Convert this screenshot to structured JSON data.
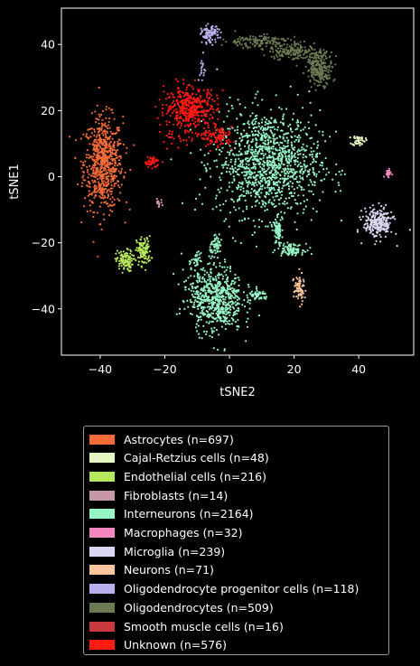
{
  "chart_data": {
    "type": "scatter",
    "xlabel": "tSNE2",
    "ylabel": "tSNE1",
    "xlim": [
      -52,
      57
    ],
    "ylim": [
      -54,
      51
    ],
    "xticks": [
      -40,
      -20,
      0,
      20,
      40
    ],
    "yticks": [
      -40,
      -20,
      0,
      20,
      40
    ],
    "grid": false,
    "legend_placement": "below plot",
    "background": "#000000",
    "series": [
      {
        "name": "Astrocytes (n=697)",
        "color": "#f26b38",
        "n": 697,
        "clusters": [
          {
            "cx": -39,
            "cy": 4,
            "sx": 3,
            "sy": 7,
            "n": 697
          }
        ]
      },
      {
        "name": "Cajal-Retzius cells (n=48)",
        "color": "#e5f6c2",
        "n": 48,
        "clusters": [
          {
            "cx": 40,
            "cy": 11,
            "sx": 1,
            "sy": 0.8,
            "n": 48
          }
        ]
      },
      {
        "name": "Endothelial cells (n=216)",
        "color": "#b5e85a",
        "n": 216,
        "clusters": [
          {
            "cx": -32.5,
            "cy": -25.5,
            "sx": 1.3,
            "sy": 1.6,
            "n": 110
          },
          {
            "cx": -26.5,
            "cy": -22.5,
            "sx": 1.1,
            "sy": 2.2,
            "n": 106
          }
        ]
      },
      {
        "name": "Fibroblasts (n=14)",
        "color": "#c797a8",
        "n": 14,
        "clusters": [
          {
            "cx": -22,
            "cy": -8,
            "sx": 0.6,
            "sy": 0.6,
            "n": 14
          }
        ]
      },
      {
        "name": "Interneurons (n=2164)",
        "color": "#96f5c5",
        "n": 2164,
        "clusters": [
          {
            "cx": 12,
            "cy": 4,
            "sx": 8,
            "sy": 8,
            "n": 1200
          },
          {
            "cx": -4,
            "cy": -37,
            "sx": 4,
            "sy": 5,
            "n": 600
          },
          {
            "cx": -4,
            "cy": -21,
            "sx": 1,
            "sy": 1.3,
            "n": 60
          },
          {
            "cx": 9,
            "cy": -36,
            "sx": 1.5,
            "sy": 0.8,
            "n": 50
          },
          {
            "cx": 15,
            "cy": -17,
            "sx": 0.6,
            "sy": 2,
            "n": 80
          },
          {
            "cx": 19,
            "cy": -22,
            "sx": 2,
            "sy": 0.8,
            "n": 100
          },
          {
            "cx": -10,
            "cy": -25,
            "sx": 0.6,
            "sy": 1,
            "n": 24
          },
          {
            "cx": -10,
            "cy": -33,
            "sx": 3,
            "sy": 5,
            "n": 50
          }
        ]
      },
      {
        "name": "Macrophages (n=32)",
        "color": "#f487c0",
        "n": 32,
        "clusters": [
          {
            "cx": 49,
            "cy": 1,
            "sx": 0.5,
            "sy": 0.5,
            "n": 32
          }
        ]
      },
      {
        "name": "Microglia (n=239)",
        "color": "#dcd7f0",
        "n": 239,
        "clusters": [
          {
            "cx": 46,
            "cy": -14,
            "sx": 2.3,
            "sy": 2.3,
            "n": 239
          }
        ]
      },
      {
        "name": "Neurons (n=71)",
        "color": "#fbc49c",
        "n": 71,
        "clusters": [
          {
            "cx": 21.5,
            "cy": -34,
            "sx": 0.8,
            "sy": 2.2,
            "n": 71
          }
        ]
      },
      {
        "name": "Oligodendrocyte progenitor cells (n=118)",
        "color": "#b8b0ec",
        "n": 118,
        "clusters": [
          {
            "cx": -6,
            "cy": 43,
            "sx": 1.3,
            "sy": 1.3,
            "n": 100
          },
          {
            "cx": -8.5,
            "cy": 32,
            "sx": 0.5,
            "sy": 2.5,
            "n": 18
          }
        ]
      },
      {
        "name": "Oligodendrocytes (n=509)",
        "color": "#6b7a52",
        "n": 509,
        "clusters": [
          {
            "cx": 28,
            "cy": 33,
            "sx": 2,
            "sy": 2.5,
            "n": 220
          },
          {
            "cx": 20,
            "cy": 38,
            "sx": 4,
            "sy": 1.5,
            "n": 160
          },
          {
            "cx": 8,
            "cy": 41,
            "sx": 5,
            "sy": 1,
            "n": 129
          }
        ]
      },
      {
        "name": "Smooth muscle cells (n=16)",
        "color": "#c9373f",
        "n": 16,
        "clusters": [
          {
            "cx": -3,
            "cy": 12,
            "sx": 0.7,
            "sy": 0.8,
            "n": 16
          }
        ]
      },
      {
        "name": "Unknown (n=576)",
        "color": "#ff1a12",
        "n": 576,
        "clusters": [
          {
            "cx": -12,
            "cy": 21,
            "sx": 4,
            "sy": 3,
            "n": 400
          },
          {
            "cx": -4,
            "cy": 12,
            "sx": 2.5,
            "sy": 1.5,
            "n": 100
          },
          {
            "cx": -24,
            "cy": 4.5,
            "sx": 1.2,
            "sy": 0.8,
            "n": 46
          },
          {
            "cx": -16,
            "cy": 12,
            "sx": 3,
            "sy": 2,
            "n": 30
          }
        ]
      }
    ]
  }
}
